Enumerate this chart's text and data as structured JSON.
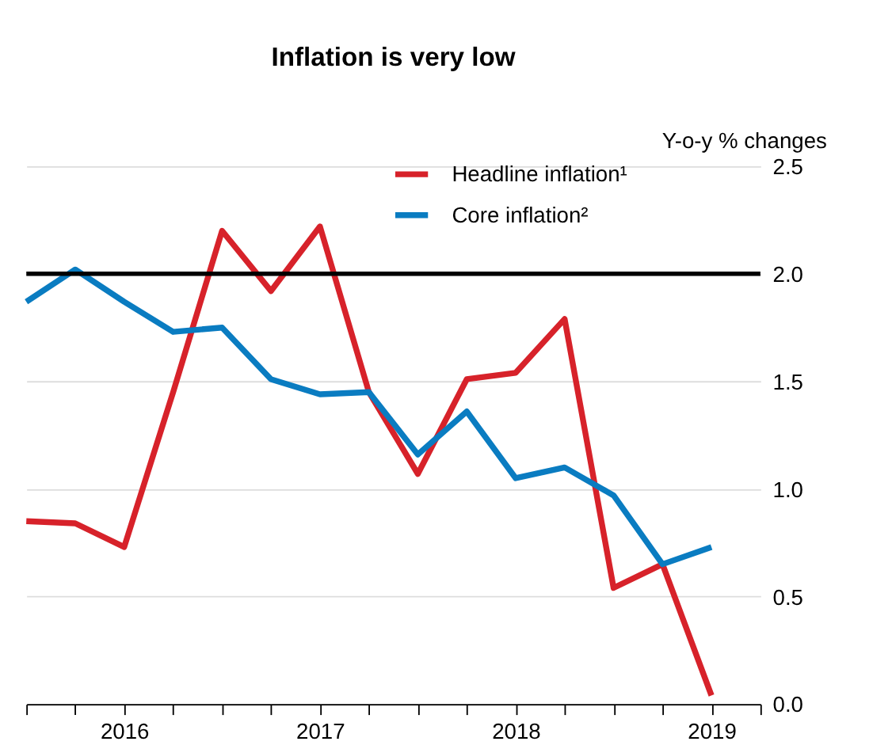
{
  "chart_data": {
    "type": "line",
    "title": "Inflation is very low",
    "ylabel": "Y-o-y % changes",
    "x": [
      2015.5,
      2015.75,
      2016,
      2016.25,
      2016.5,
      2016.75,
      2017,
      2017.25,
      2017.5,
      2017.75,
      2018,
      2018.25,
      2018.5,
      2018.75,
      2019
    ],
    "series": [
      {
        "name": "Headline inflation¹",
        "color": "#d7222a",
        "values": [
          0.85,
          0.84,
          0.73,
          1.45,
          2.2,
          1.92,
          2.22,
          1.45,
          1.07,
          1.51,
          1.54,
          1.79,
          0.54,
          0.65,
          0.04
        ]
      },
      {
        "name": "Core inflation²",
        "color": "#0a7cc1",
        "values": [
          1.87,
          2.02,
          1.87,
          1.73,
          1.75,
          1.51,
          1.44,
          1.45,
          1.16,
          1.36,
          1.05,
          1.1,
          0.97,
          0.65,
          0.73
        ]
      }
    ],
    "xlim": [
      2015.5,
      2019.25
    ],
    "xticks": [
      {
        "value": 2015.5,
        "label": null
      },
      {
        "value": 2015.75,
        "label": null
      },
      {
        "value": 2016,
        "label": "2016"
      },
      {
        "value": 2016.25,
        "label": null
      },
      {
        "value": 2016.5,
        "label": null
      },
      {
        "value": 2016.75,
        "label": null
      },
      {
        "value": 2017,
        "label": "2017"
      },
      {
        "value": 2017.25,
        "label": null
      },
      {
        "value": 2017.5,
        "label": null
      },
      {
        "value": 2017.75,
        "label": null
      },
      {
        "value": 2018,
        "label": "2018"
      },
      {
        "value": 2018.25,
        "label": null
      },
      {
        "value": 2018.5,
        "label": null
      },
      {
        "value": 2018.75,
        "label": null
      },
      {
        "value": 2019,
        "label": "2019"
      },
      {
        "value": 2019.25,
        "label": null
      }
    ],
    "ylim": [
      0,
      2.5
    ],
    "yticks": [
      {
        "value": 0,
        "label": "0.0"
      },
      {
        "value": 0.5,
        "label": "0.5"
      },
      {
        "value": 1,
        "label": "1.0"
      },
      {
        "value": 1.5,
        "label": "1.5"
      },
      {
        "value": 2,
        "label": "2.0"
      },
      {
        "value": 2.5,
        "label": "2.5"
      }
    ],
    "ref_lines": [
      {
        "axis": "y",
        "value": 2,
        "color": "#000000"
      }
    ],
    "grid": "y",
    "legend": "top right",
    "marker": "none",
    "line_style": "solid"
  }
}
